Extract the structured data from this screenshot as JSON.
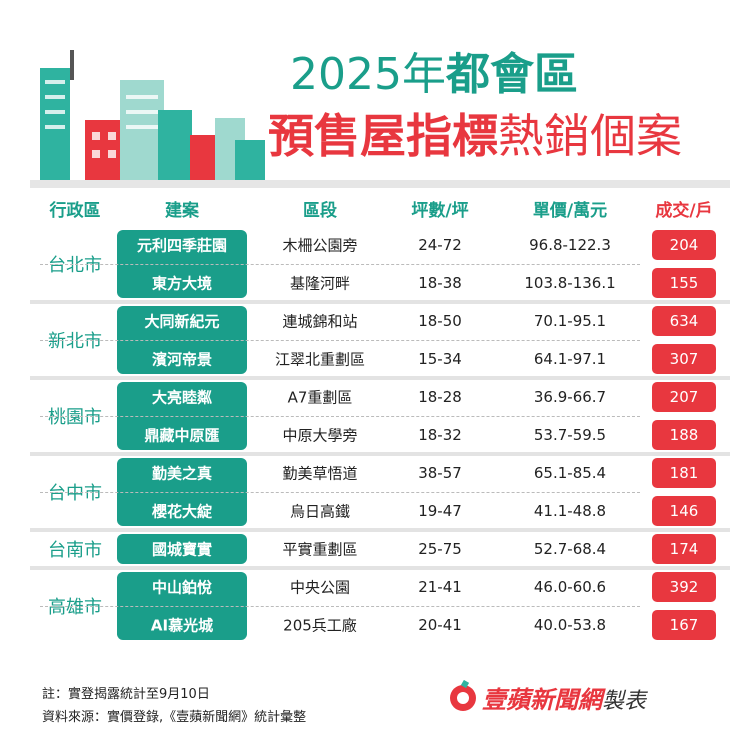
{
  "title": {
    "line1": [
      "2025年",
      "都會區"
    ],
    "line2": [
      "預售屋指標",
      "熱銷個案"
    ]
  },
  "headers": [
    "行政區",
    "建案",
    "區段",
    "坪數/坪",
    "單價/萬元",
    "成交/戶"
  ],
  "groups": [
    {
      "region": "台北市",
      "rows": [
        [
          "元利四季莊園",
          "木柵公園旁",
          "24-72",
          "96.8-122.3",
          204
        ],
        [
          "東方大境",
          "基隆河畔",
          "18-38",
          "103.8-136.1",
          155
        ]
      ]
    },
    {
      "region": "新北市",
      "rows": [
        [
          "大同新紀元",
          "連城錦和站",
          "18-50",
          "70.1-95.1",
          634
        ],
        [
          "濱河帝景",
          "江翠北重劃區",
          "15-34",
          "64.1-97.1",
          307
        ]
      ]
    },
    {
      "region": "桃園市",
      "rows": [
        [
          "大亮睦粼",
          "A7重劃區",
          "18-28",
          "36.9-66.7",
          207
        ],
        [
          "鼎藏中原匯",
          "中原大學旁",
          "18-32",
          "53.7-59.5",
          188
        ]
      ]
    },
    {
      "region": "台中市",
      "rows": [
        [
          "勤美之真",
          "勤美草悟道",
          "38-57",
          "65.1-85.4",
          181
        ],
        [
          "櫻花大綻",
          "烏日高鐵",
          "19-47",
          "41.1-48.8",
          146
        ]
      ]
    },
    {
      "region": "台南市",
      "rows": [
        [
          "國城寶實",
          "平實重劃區",
          "25-75",
          "52.7-68.4",
          174
        ]
      ]
    },
    {
      "region": "高雄市",
      "rows": [
        [
          "中山鉑悅",
          "中央公園",
          "21-41",
          "46.0-60.6",
          392
        ],
        [
          "AI慕光城",
          "205兵工廠",
          "20-41",
          "40.0-53.8",
          167
        ]
      ]
    }
  ],
  "footer": {
    "note": "註：實登揭露統計至9月10日",
    "source": "資料來源：實價登錄,《壹蘋新聞網》統計彙整",
    "brand": "壹蘋新聞網",
    "brand_suffix": "製表"
  }
}
